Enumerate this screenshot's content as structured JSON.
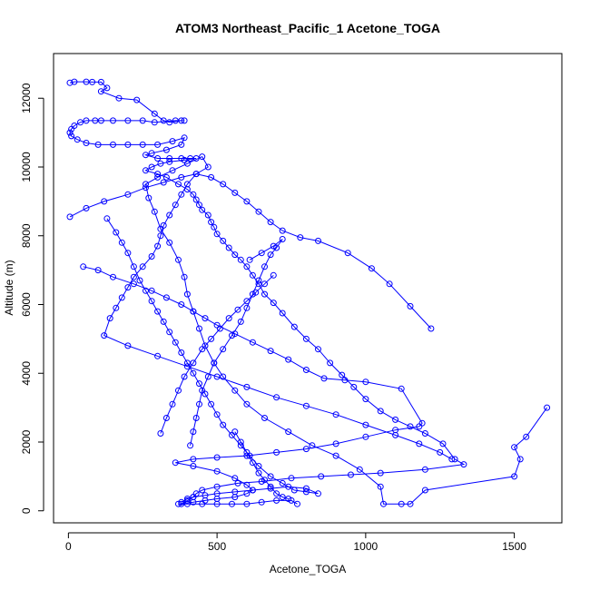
{
  "chart_data": {
    "type": "line",
    "title": "ATOM3 Northeast_Pacific_1 Acetone_TOGA",
    "xlabel": "Acetone_TOGA",
    "ylabel": "Altitude (m)",
    "xlim": [
      -50,
      1660
    ],
    "ylim": [
      -350,
      13300
    ],
    "xticks": [
      0,
      500,
      1000,
      1500
    ],
    "yticks": [
      0,
      2000,
      4000,
      6000,
      8000,
      10000,
      12000
    ],
    "grid": false,
    "legend": "none",
    "marker": "open-circle",
    "series": [
      {
        "color": "#0000ff",
        "points": [
          [
            5,
            12450
          ],
          [
            20,
            12480
          ],
          [
            60,
            12480
          ],
          [
            80,
            12470
          ],
          [
            110,
            12470
          ],
          [
            130,
            12300
          ],
          [
            110,
            12200
          ],
          [
            170,
            12000
          ],
          [
            230,
            11950
          ],
          [
            290,
            11550
          ],
          [
            320,
            11350
          ],
          [
            340,
            11300
          ],
          [
            380,
            11350
          ],
          [
            390,
            11350
          ],
          [
            360,
            11350
          ],
          [
            290,
            11300
          ],
          [
            250,
            11350
          ],
          [
            200,
            11350
          ],
          [
            150,
            11350
          ],
          [
            110,
            11350
          ],
          [
            90,
            11350
          ],
          [
            60,
            11350
          ],
          [
            40,
            11300
          ],
          [
            20,
            11200
          ],
          [
            10,
            11100
          ],
          [
            5,
            11000
          ],
          [
            10,
            10900
          ],
          [
            30,
            10800
          ],
          [
            60,
            10700
          ],
          [
            100,
            10650
          ],
          [
            150,
            10650
          ],
          [
            200,
            10650
          ],
          [
            250,
            10650
          ],
          [
            300,
            10650
          ],
          [
            350,
            10750
          ],
          [
            390,
            10850
          ],
          [
            380,
            10650
          ],
          [
            330,
            10500
          ],
          [
            280,
            10400
          ],
          [
            260,
            10350
          ],
          [
            300,
            10250
          ],
          [
            340,
            10250
          ],
          [
            380,
            10250
          ],
          [
            410,
            10250
          ],
          [
            430,
            10250
          ],
          [
            390,
            10200
          ],
          [
            340,
            10150
          ],
          [
            310,
            10100
          ],
          [
            280,
            10000
          ],
          [
            260,
            9900
          ],
          [
            300,
            9800
          ],
          [
            330,
            9700
          ],
          [
            370,
            9500
          ],
          [
            400,
            9350
          ],
          [
            420,
            9200
          ],
          [
            430,
            9050
          ],
          [
            440,
            8900
          ],
          [
            450,
            8750
          ],
          [
            470,
            8600
          ],
          [
            480,
            8400
          ],
          [
            490,
            8250
          ],
          [
            500,
            8050
          ],
          [
            520,
            7850
          ],
          [
            540,
            7650
          ],
          [
            560,
            7450
          ],
          [
            580,
            7300
          ],
          [
            600,
            7100
          ],
          [
            620,
            6850
          ],
          [
            640,
            6600
          ],
          [
            660,
            6300
          ],
          [
            690,
            6050
          ],
          [
            720,
            5750
          ],
          [
            760,
            5350
          ],
          [
            800,
            5000
          ],
          [
            840,
            4700
          ],
          [
            880,
            4300
          ],
          [
            920,
            3950
          ],
          [
            960,
            3600
          ],
          [
            1000,
            3250
          ],
          [
            1050,
            2900
          ],
          [
            1100,
            2650
          ],
          [
            1150,
            2450
          ],
          [
            1200,
            2250
          ],
          [
            1260,
            1950
          ],
          [
            1300,
            1500
          ],
          [
            1330,
            1350
          ],
          [
            1200,
            1200
          ],
          [
            1050,
            1100
          ],
          [
            950,
            1050
          ],
          [
            850,
            1000
          ],
          [
            750,
            950
          ],
          [
            650,
            850
          ],
          [
            570,
            800
          ],
          [
            500,
            700
          ],
          [
            450,
            600
          ],
          [
            430,
            500
          ],
          [
            420,
            400
          ],
          [
            400,
            300
          ],
          [
            380,
            200
          ],
          [
            400,
            200
          ],
          [
            450,
            200
          ],
          [
            500,
            200
          ],
          [
            550,
            200
          ],
          [
            600,
            200
          ],
          [
            650,
            250
          ],
          [
            700,
            300
          ],
          [
            750,
            300
          ],
          [
            770,
            200
          ]
        ]
      },
      {
        "color": "#0000ff",
        "points": [
          [
            1610,
            3000
          ],
          [
            1540,
            2150
          ],
          [
            1500,
            1850
          ],
          [
            1520,
            1500
          ],
          [
            1500,
            1000
          ],
          [
            1200,
            600
          ],
          [
            1150,
            200
          ],
          [
            1120,
            200
          ],
          [
            1060,
            200
          ],
          [
            1050,
            700
          ],
          [
            980,
            1200
          ],
          [
            900,
            1600
          ],
          [
            820,
            1900
          ],
          [
            740,
            2300
          ],
          [
            660,
            2700
          ],
          [
            600,
            3100
          ],
          [
            560,
            3500
          ],
          [
            520,
            3900
          ],
          [
            490,
            4300
          ],
          [
            460,
            4800
          ],
          [
            440,
            5300
          ],
          [
            420,
            5800
          ],
          [
            400,
            6300
          ],
          [
            390,
            6800
          ],
          [
            370,
            7300
          ],
          [
            340,
            7800
          ],
          [
            310,
            8200
          ],
          [
            290,
            8700
          ],
          [
            270,
            9100
          ],
          [
            260,
            9500
          ],
          [
            300,
            9700
          ],
          [
            350,
            9900
          ],
          [
            400,
            10100
          ],
          [
            450,
            10300
          ],
          [
            470,
            10000
          ],
          [
            430,
            9800
          ],
          [
            400,
            9500
          ],
          [
            380,
            9200
          ],
          [
            360,
            8900
          ],
          [
            340,
            8600
          ],
          [
            320,
            8300
          ],
          [
            310,
            8000
          ],
          [
            300,
            7700
          ],
          [
            280,
            7400
          ],
          [
            250,
            7100
          ],
          [
            220,
            6800
          ],
          [
            200,
            6500
          ],
          [
            180,
            6200
          ],
          [
            160,
            5900
          ],
          [
            140,
            5600
          ],
          [
            120,
            5100
          ],
          [
            200,
            4800
          ],
          [
            300,
            4500
          ],
          [
            400,
            4200
          ],
          [
            500,
            3900
          ],
          [
            600,
            3600
          ],
          [
            700,
            3300
          ],
          [
            800,
            3050
          ],
          [
            900,
            2800
          ],
          [
            1000,
            2500
          ],
          [
            1100,
            2200
          ],
          [
            1180,
            1950
          ],
          [
            1250,
            1700
          ],
          [
            1290,
            1500
          ]
        ]
      },
      {
        "color": "#0000ff",
        "points": [
          [
            50,
            7100
          ],
          [
            100,
            7000
          ],
          [
            150,
            6800
          ],
          [
            220,
            6600
          ],
          [
            280,
            6400
          ],
          [
            330,
            6200
          ],
          [
            380,
            6000
          ],
          [
            420,
            5800
          ],
          [
            460,
            5600
          ],
          [
            500,
            5400
          ],
          [
            560,
            5150
          ],
          [
            620,
            4900
          ],
          [
            680,
            4650
          ],
          [
            740,
            4400
          ],
          [
            800,
            4100
          ],
          [
            860,
            3850
          ],
          [
            930,
            3800
          ],
          [
            1000,
            3750
          ],
          [
            1120,
            3550
          ],
          [
            1190,
            2550
          ],
          [
            1180,
            2450
          ],
          [
            1100,
            2350
          ],
          [
            1000,
            2150
          ],
          [
            900,
            1950
          ],
          [
            800,
            1800
          ],
          [
            700,
            1700
          ],
          [
            600,
            1600
          ],
          [
            500,
            1550
          ],
          [
            420,
            1500
          ],
          [
            360,
            1400
          ],
          [
            420,
            1300
          ],
          [
            500,
            1150
          ],
          [
            560,
            950
          ],
          [
            600,
            750
          ],
          [
            620,
            600
          ],
          [
            600,
            500
          ],
          [
            560,
            400
          ],
          [
            500,
            350
          ],
          [
            460,
            300
          ],
          [
            420,
            250
          ],
          [
            370,
            200
          ]
        ]
      },
      {
        "color": "#0000ff",
        "points": [
          [
            5,
            8550
          ],
          [
            60,
            8800
          ],
          [
            120,
            9000
          ],
          [
            200,
            9200
          ],
          [
            260,
            9400
          ],
          [
            320,
            9550
          ],
          [
            380,
            9700
          ],
          [
            430,
            9800
          ],
          [
            480,
            9700
          ],
          [
            520,
            9500
          ],
          [
            560,
            9250
          ],
          [
            600,
            9000
          ],
          [
            640,
            8700
          ],
          [
            680,
            8400
          ],
          [
            720,
            8150
          ],
          [
            780,
            7950
          ],
          [
            840,
            7850
          ],
          [
            940,
            7500
          ],
          [
            1020,
            7050
          ],
          [
            1080,
            6600
          ],
          [
            1150,
            5950
          ],
          [
            1220,
            5300
          ]
        ]
      },
      {
        "color": "#0000ff",
        "points": [
          [
            130,
            8500
          ],
          [
            160,
            8100
          ],
          [
            180,
            7800
          ],
          [
            200,
            7500
          ],
          [
            220,
            7100
          ],
          [
            240,
            6700
          ],
          [
            260,
            6400
          ],
          [
            280,
            6100
          ],
          [
            300,
            5800
          ],
          [
            320,
            5500
          ],
          [
            340,
            5200
          ],
          [
            360,
            4900
          ],
          [
            380,
            4600
          ],
          [
            400,
            4300
          ],
          [
            420,
            4000
          ],
          [
            440,
            3700
          ],
          [
            460,
            3400
          ],
          [
            480,
            3100
          ],
          [
            500,
            2800
          ],
          [
            520,
            2500
          ],
          [
            550,
            2200
          ],
          [
            580,
            1900
          ],
          [
            610,
            1600
          ],
          [
            640,
            1300
          ],
          [
            680,
            1000
          ],
          [
            720,
            800
          ],
          [
            760,
            600
          ],
          [
            800,
            550
          ],
          [
            840,
            500
          ],
          [
            800,
            650
          ],
          [
            740,
            700
          ],
          [
            680,
            650
          ],
          [
            620,
            600
          ],
          [
            560,
            550
          ],
          [
            500,
            500
          ],
          [
            460,
            450
          ],
          [
            420,
            400
          ],
          [
            400,
            350
          ],
          [
            380,
            250
          ]
        ]
      },
      {
        "color": "#0000ff",
        "points": [
          [
            310,
            2250
          ],
          [
            330,
            2700
          ],
          [
            350,
            3100
          ],
          [
            370,
            3500
          ],
          [
            390,
            3900
          ],
          [
            420,
            4300
          ],
          [
            450,
            4700
          ],
          [
            480,
            5000
          ],
          [
            510,
            5300
          ],
          [
            540,
            5600
          ],
          [
            570,
            5850
          ],
          [
            600,
            6100
          ],
          [
            630,
            6350
          ],
          [
            660,
            6600
          ],
          [
            690,
            6850
          ]
        ]
      },
      {
        "color": "#0000ff",
        "points": [
          [
            410,
            1900
          ],
          [
            420,
            2300
          ],
          [
            430,
            2700
          ],
          [
            440,
            3100
          ],
          [
            450,
            3500
          ],
          [
            470,
            3900
          ],
          [
            490,
            4300
          ],
          [
            520,
            4700
          ],
          [
            550,
            5100
          ],
          [
            580,
            5500
          ],
          [
            600,
            5900
          ],
          [
            620,
            6300
          ],
          [
            640,
            6700
          ],
          [
            660,
            7100
          ],
          [
            680,
            7450
          ],
          [
            700,
            7650
          ],
          [
            720,
            7900
          ],
          [
            690,
            7700
          ],
          [
            650,
            7500
          ],
          [
            610,
            7300
          ]
        ]
      },
      {
        "color": "#0000ff",
        "points": [
          [
            560,
            2300
          ],
          [
            580,
            2000
          ],
          [
            600,
            1700
          ],
          [
            620,
            1400
          ],
          [
            640,
            1100
          ],
          [
            660,
            900
          ],
          [
            680,
            700
          ],
          [
            700,
            500
          ],
          [
            720,
            400
          ],
          [
            740,
            350
          ]
        ]
      }
    ]
  }
}
